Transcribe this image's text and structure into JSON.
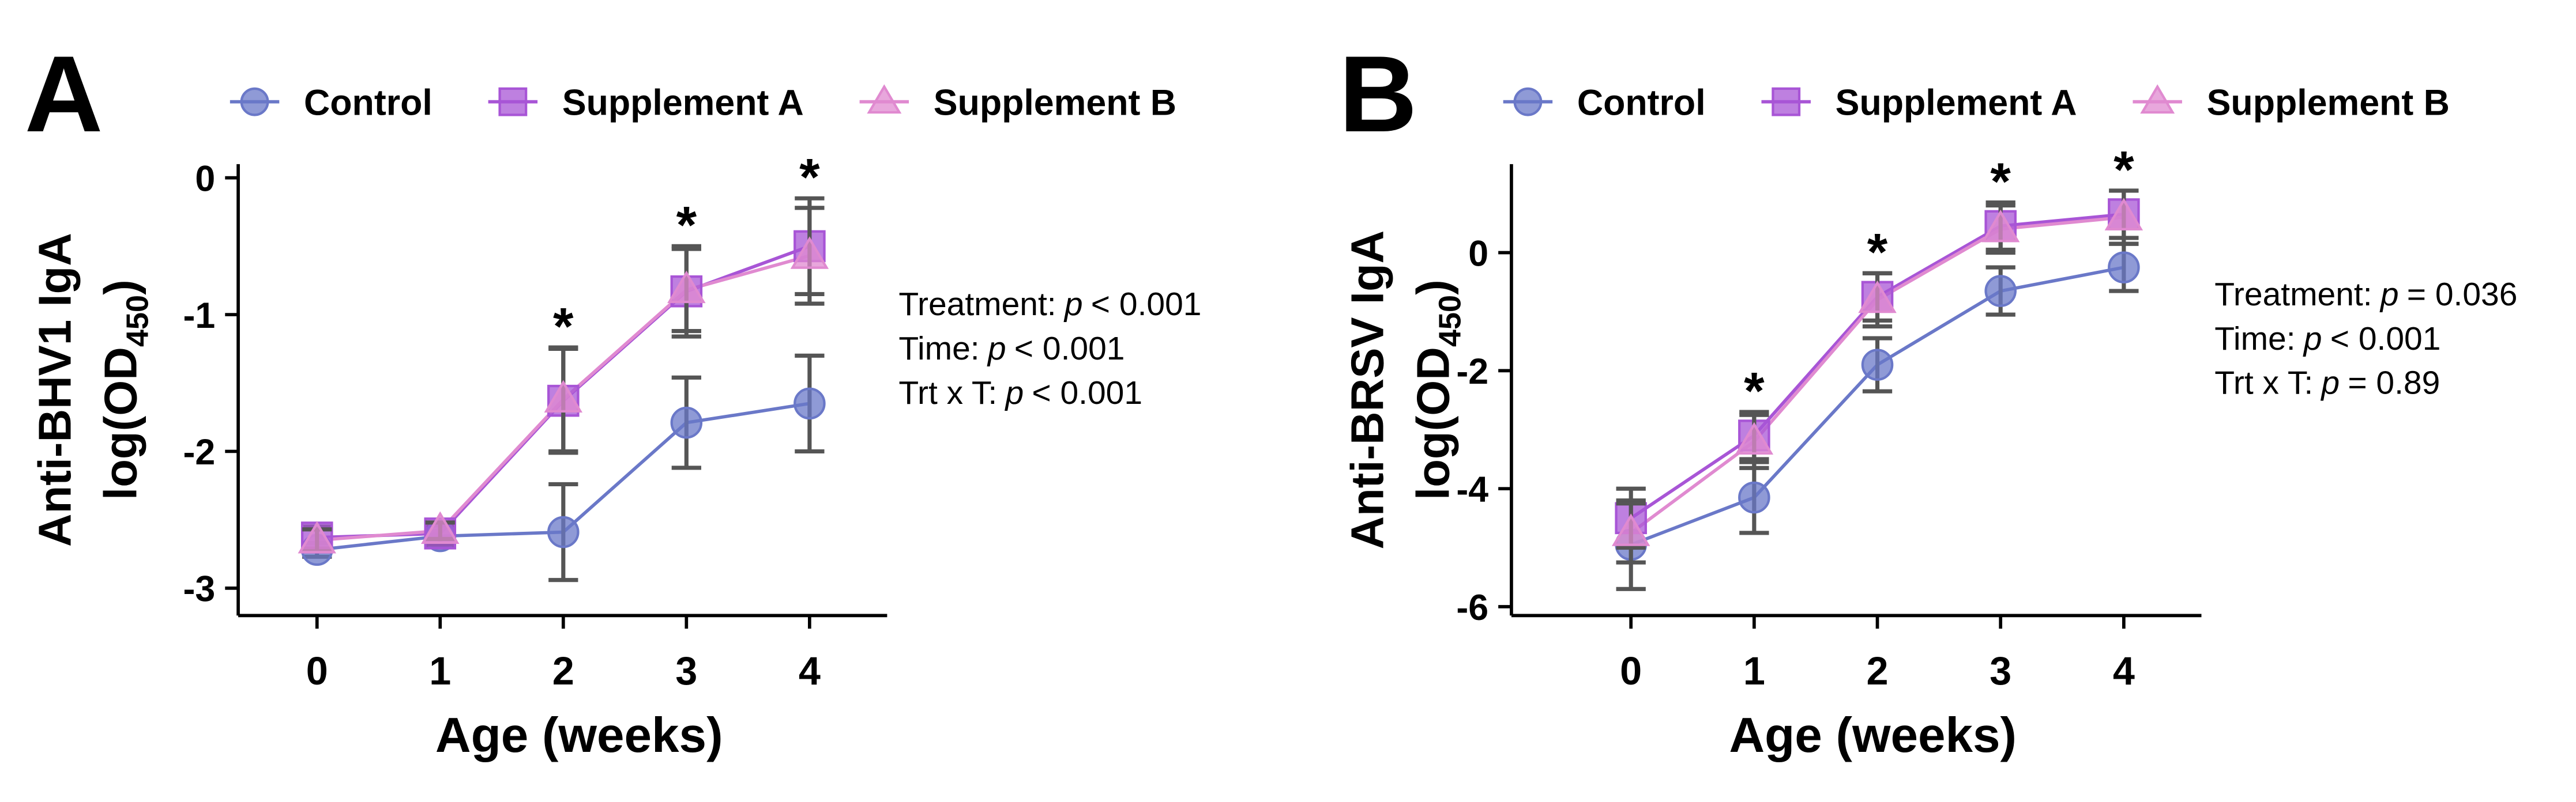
{
  "chart_data": [
    {
      "type": "line",
      "panel": "A",
      "ylabel": "Anti-BHV1 IgA",
      "ylabel_line2": "log(OD",
      "ylabel_sub": "450",
      "ylabel_close": ")",
      "xlabel": "Age (weeks)",
      "x": [
        0,
        1,
        2,
        3,
        4
      ],
      "xlim": [
        -0.64,
        4.63
      ],
      "xticks": [
        0,
        1,
        2,
        3,
        4
      ],
      "ylim": [
        -3.2,
        0.1
      ],
      "yticks": [
        0,
        -1,
        -2,
        -3
      ],
      "error_color": "#555555",
      "series": [
        {
          "name": "Control",
          "color": "#6a78c8",
          "marker": "circle",
          "values": [
            -2.72,
            -2.62,
            -2.59,
            -1.79,
            -1.65
          ],
          "errors": [
            0.05,
            0.08,
            0.35,
            0.33,
            0.35
          ]
        },
        {
          "name": "Supplement A",
          "color": "#a855d6",
          "marker": "square",
          "values": [
            -2.63,
            -2.6,
            -1.63,
            -0.83,
            -0.5
          ],
          "errors": [
            0.08,
            0.08,
            0.38,
            0.33,
            0.35
          ]
        },
        {
          "name": "Supplement B",
          "color": "#e08ad0",
          "marker": "triangle",
          "values": [
            -2.65,
            -2.58,
            -1.62,
            -0.82,
            -0.57
          ],
          "errors": [
            0.08,
            0.06,
            0.38,
            0.3,
            0.35
          ]
        }
      ],
      "significance": {
        "x": [
          2,
          3,
          4
        ],
        "label": "*"
      },
      "annotations": [
        {
          "label": "Treatment:",
          "var": "p",
          "rel": "< 0.001"
        },
        {
          "label": "Time:",
          "var": "p",
          "rel": "< 0.001"
        },
        {
          "label": "Trt x T:",
          "var": "p",
          "rel": "< 0.001"
        }
      ]
    },
    {
      "type": "line",
      "panel": "B",
      "ylabel": "Anti-BRSV IgA",
      "ylabel_line2": "log(OD",
      "ylabel_sub": "450",
      "ylabel_close": ")",
      "xlabel": "Age (weeks)",
      "x": [
        0,
        1,
        2,
        3,
        4
      ],
      "xlim": [
        -0.97,
        4.63
      ],
      "xticks": [
        0,
        1,
        2,
        3,
        4
      ],
      "ylim": [
        -6.15,
        1.5
      ],
      "yticks": [
        0,
        -2,
        -4,
        -6
      ],
      "error_color": "#555555",
      "series": [
        {
          "name": "Control",
          "color": "#6a78c8",
          "marker": "circle",
          "values": [
            -4.95,
            -4.15,
            -1.9,
            -0.65,
            -0.25
          ],
          "errors": [
            0.75,
            0.6,
            0.45,
            0.4,
            0.4
          ]
        },
        {
          "name": "Supplement A",
          "color": "#a855d6",
          "marker": "square",
          "values": [
            -4.5,
            -3.1,
            -0.75,
            0.45,
            0.65
          ],
          "errors": [
            0.5,
            0.4,
            0.4,
            0.4,
            0.4
          ]
        },
        {
          "name": "Supplement B",
          "color": "#e08ad0",
          "marker": "triangle",
          "values": [
            -4.75,
            -3.2,
            -0.8,
            0.4,
            0.6
          ],
          "errors": [
            0.5,
            0.45,
            0.45,
            0.4,
            0.45
          ]
        }
      ],
      "significance": {
        "x": [
          1,
          2,
          3,
          4
        ],
        "label": "*"
      },
      "annotations": [
        {
          "label": "Treatment:",
          "var": "p",
          "rel": "= 0.036"
        },
        {
          "label": "Time:",
          "var": "p",
          "rel": "< 0.001"
        },
        {
          "label": "Trt x T:",
          "var": "p",
          "rel": "= 0.89"
        }
      ]
    }
  ]
}
